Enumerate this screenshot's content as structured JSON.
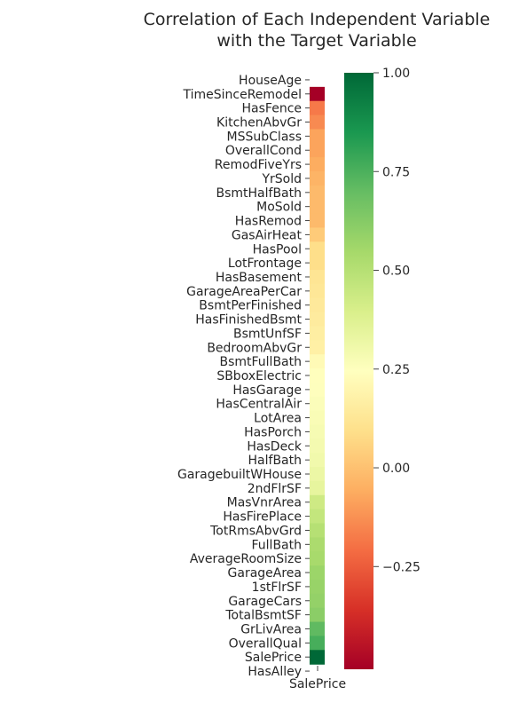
{
  "chart_data": {
    "type": "heatmap",
    "title_lines": [
      "Correlation of Each Independent Variable",
      "with the Target Variable"
    ],
    "column": "SalePrice",
    "rows": [
      {
        "label": "HouseAge",
        "value": null
      },
      {
        "label": "TimeSinceRemodel",
        "value": -0.51
      },
      {
        "label": "HasFence",
        "value": -0.18
      },
      {
        "label": "KitchenAbvGr",
        "value": -0.14
      },
      {
        "label": "MSSubClass",
        "value": -0.08
      },
      {
        "label": "OverallCond",
        "value": -0.08
      },
      {
        "label": "RemodFiveYrs",
        "value": -0.06
      },
      {
        "label": "YrSold",
        "value": -0.04
      },
      {
        "label": "BsmtHalfBath",
        "value": -0.02
      },
      {
        "label": "MoSold",
        "value": -0.02
      },
      {
        "label": "HasRemod",
        "value": -0.02
      },
      {
        "label": "GasAirHeat",
        "value": 0.03
      },
      {
        "label": "HasPool",
        "value": 0.09
      },
      {
        "label": "LotFrontage",
        "value": 0.09
      },
      {
        "label": "HasBasement",
        "value": 0.12
      },
      {
        "label": "GarageAreaPerCar",
        "value": 0.13
      },
      {
        "label": "BsmtPerFinished",
        "value": 0.14
      },
      {
        "label": "HasFinishedBsmt",
        "value": 0.15
      },
      {
        "label": "BsmtUnfSF",
        "value": 0.16
      },
      {
        "label": "BedroomAbvGr",
        "value": 0.17
      },
      {
        "label": "BsmtFullBath",
        "value": 0.22
      },
      {
        "label": "SBboxElectric",
        "value": 0.24
      },
      {
        "label": "HasGarage",
        "value": 0.25
      },
      {
        "label": "HasCentralAir",
        "value": 0.26
      },
      {
        "label": "LotArea",
        "value": 0.27
      },
      {
        "label": "HasPorch",
        "value": 0.28
      },
      {
        "label": "HasDeck",
        "value": 0.29
      },
      {
        "label": "HalfBath",
        "value": 0.3
      },
      {
        "label": "GaragebuiltWHouse",
        "value": 0.32
      },
      {
        "label": "2ndFlrSF",
        "value": 0.34
      },
      {
        "label": "MasVnrArea",
        "value": 0.43
      },
      {
        "label": "HasFirePlace",
        "value": 0.46
      },
      {
        "label": "TotRmsAbvGrd",
        "value": 0.5
      },
      {
        "label": "FullBath",
        "value": 0.53
      },
      {
        "label": "AverageRoomSize",
        "value": 0.54
      },
      {
        "label": "GarageArea",
        "value": 0.57
      },
      {
        "label": "1stFlrSF",
        "value": 0.58
      },
      {
        "label": "GarageCars",
        "value": 0.59
      },
      {
        "label": "TotalBsmtSF",
        "value": 0.61
      },
      {
        "label": "GrLivArea",
        "value": 0.71
      },
      {
        "label": "OverallQual",
        "value": 0.76
      },
      {
        "label": "SalePrice",
        "value": 1.0
      },
      {
        "label": "HasAlley",
        "value": null
      }
    ],
    "colormap": "RdYlGn",
    "colorbar": {
      "vmin": -0.51,
      "vmax": 1.0,
      "ticks": [
        {
          "value": 1.0,
          "label": "1.00"
        },
        {
          "value": 0.75,
          "label": "0.75"
        },
        {
          "value": 0.5,
          "label": "0.50"
        },
        {
          "value": 0.25,
          "label": "0.25"
        },
        {
          "value": 0.0,
          "label": "0.00"
        },
        {
          "value": -0.25,
          "label": "−0.25"
        }
      ]
    }
  }
}
